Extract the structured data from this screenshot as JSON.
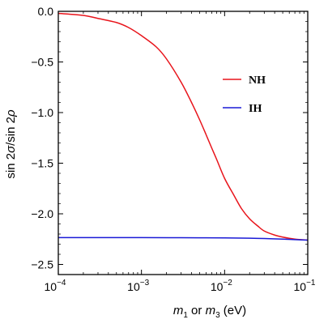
{
  "chart_data": {
    "type": "line",
    "xlabel": {
      "m1": "m",
      "sub1": "1",
      "mid": " or ",
      "m3": "m",
      "sub3": "3",
      "unit": " (eV)"
    },
    "ylabel": {
      "prefix": "sin 2",
      "sigma": "σ",
      "slash": "/sin 2",
      "rho": "ρ"
    },
    "x_scale": "log",
    "xlim": [
      0.0001,
      0.1
    ],
    "ylim": [
      -2.6,
      0.0
    ],
    "x_ticks": [
      {
        "value": 0.0001,
        "base": "10",
        "exp": "−4"
      },
      {
        "value": 0.001,
        "base": "10",
        "exp": "−3"
      },
      {
        "value": 0.01,
        "base": "10",
        "exp": "−2"
      },
      {
        "value": 0.1,
        "base": "10",
        "exp": "−1"
      }
    ],
    "y_ticks": [
      {
        "value": 0.0,
        "label": "0.0"
      },
      {
        "value": -0.5,
        "label": "−0.5"
      },
      {
        "value": -1.0,
        "label": "−1.0"
      },
      {
        "value": -1.5,
        "label": "−1.5"
      },
      {
        "value": -2.0,
        "label": "−2.0"
      },
      {
        "value": -2.5,
        "label": "−2.5"
      }
    ],
    "legend_position": "right",
    "series": [
      {
        "name": "NH",
        "color": "#e8141b",
        "x": [
          0.0001,
          0.0002,
          0.0003,
          0.0005,
          0.0007,
          0.001,
          0.0015,
          0.002,
          0.003,
          0.004,
          0.005,
          0.006,
          0.007,
          0.008,
          0.01,
          0.013,
          0.016,
          0.02,
          0.025,
          0.03,
          0.04,
          0.05,
          0.07,
          0.1
        ],
        "y": [
          -0.02,
          -0.04,
          -0.07,
          -0.11,
          -0.16,
          -0.24,
          -0.35,
          -0.47,
          -0.7,
          -0.9,
          -1.07,
          -1.22,
          -1.35,
          -1.46,
          -1.65,
          -1.82,
          -1.95,
          -2.05,
          -2.12,
          -2.17,
          -2.21,
          -2.23,
          -2.25,
          -2.26
        ]
      },
      {
        "name": "IH",
        "color": "#1a1ad6",
        "x": [
          0.0001,
          0.001,
          0.003,
          0.01,
          0.02,
          0.03,
          0.05,
          0.07,
          0.1
        ],
        "y": [
          -2.235,
          -2.235,
          -2.236,
          -2.238,
          -2.241,
          -2.244,
          -2.25,
          -2.255,
          -2.26
        ]
      }
    ]
  }
}
